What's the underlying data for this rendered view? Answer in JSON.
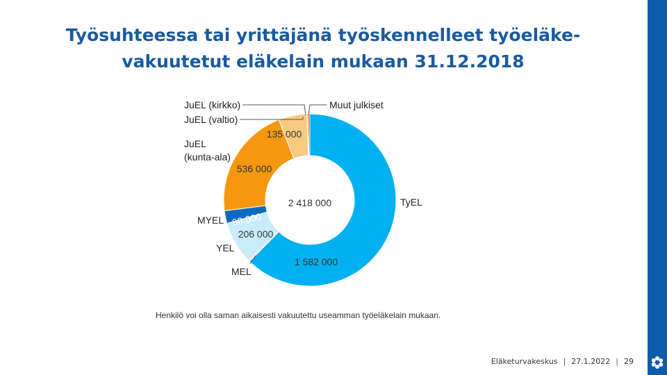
{
  "slide": {
    "title_line1": "Työsuhteessa tai yrittäjänä työskennelleet työeläke-",
    "title_line2": "vakuutetut eläkelain mukaan 31.12.2018",
    "footer_org": "Eläketurvakeskus",
    "footer_date": "27.1.2022",
    "footer_page": "29"
  },
  "chart_data": {
    "type": "pie",
    "variant": "donut",
    "center_total": "2 418 000",
    "footnote": "Henkilö voi olla saman aikaisesti vakuutettu useamman työeläkelain mukaan.",
    "slices": [
      {
        "name": "TyEL",
        "value": 1582000,
        "value_label": "1 582 000",
        "color": "#00b0f0"
      },
      {
        "name": "MEL",
        "value": 4000,
        "value_label": "",
        "color": "#1f3864"
      },
      {
        "name": "YEL",
        "value": 206000,
        "value_label": "206 000",
        "color": "#c9ecfb"
      },
      {
        "name": "MYEL",
        "value": 60000,
        "value_label": "60 000",
        "color": "#0a6ac0"
      },
      {
        "name": "JuEL (kunta-ala)",
        "value": 536000,
        "value_label": "536 000",
        "color": "#f5980f"
      },
      {
        "name": "JuEL (valtio)",
        "value": 135000,
        "value_label": "135 000",
        "color": "#f8c981"
      },
      {
        "name": "JuEL (kirkko)",
        "value": 6000,
        "value_label": "",
        "color": "#f0a030"
      },
      {
        "name": "Muut julkiset",
        "value": 8000,
        "value_label": "",
        "color": "#d9400f"
      }
    ],
    "category_labels": {
      "tyel": "TyEL",
      "mel": "MEL",
      "yel": "YEL",
      "myel": "MYEL",
      "juel_kunta_line1": "JuEL",
      "juel_kunta_line2": "(kunta-ala)",
      "juel_valtio": "JuEL (valtio)",
      "juel_kirkko": "JuEL (kirkko)",
      "muut": "Muut julkiset"
    }
  }
}
